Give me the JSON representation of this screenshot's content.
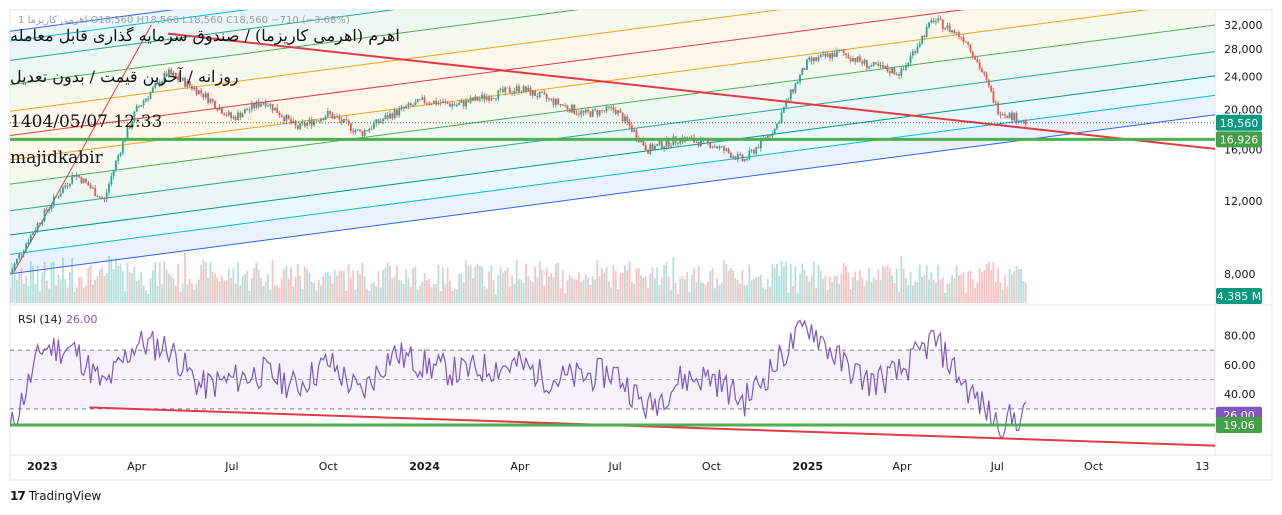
{
  "overlay_text": {
    "title": "اهرم (اهرمی کاریزما) / صندوق سرمایه گذاری قابل معامله",
    "subtitle": "روزانه / آخرین قیمت / بدون تعدیل",
    "datetime": "1404/05/07 12:33",
    "author": "majidkabir"
  },
  "ohlc_header": {
    "symbol": "اهرمی کاریزما",
    "timeframe": "1",
    "open": "O18,560",
    "high": "H18,560",
    "low": "L18,560",
    "close": "C18,560",
    "change": "−710 (−3.68%)"
  },
  "brand": {
    "logo": "17",
    "name": "TradingView"
  },
  "colors": {
    "up": "#26a69a",
    "down": "#ef5350",
    "support_line": "#4caf50",
    "trend_line": "#e53947",
    "rsi_line": "#7e57c2",
    "channel_outer": "#2962ff",
    "price_label_bg": "#089981",
    "support_label_bg": "#43a047"
  },
  "chart_data": [
    {
      "type": "candlestick",
      "title": "",
      "y_ticks": [
        "32,000",
        "28,000",
        "24,000",
        "20,000",
        "16,000",
        "12,000",
        "8,000"
      ],
      "x_ticks": [
        "2023",
        "Apr",
        "Jul",
        "Oct",
        "2024",
        "Apr",
        "Jul",
        "Oct",
        "2025",
        "Apr",
        "Jul",
        "Oct",
        "13"
      ],
      "price_label": "18,560",
      "support_label": "16,926",
      "volume_label": "4.385 M",
      "support_level": 16926,
      "last_price": 18560,
      "ylim": [
        6800,
        34800
      ],
      "grid": false,
      "price_path": [
        {
          "date": "2022-12",
          "close": 8000
        },
        {
          "date": "2023-01",
          "close": 11000
        },
        {
          "date": "2023-02",
          "close": 14000
        },
        {
          "date": "2023-03",
          "close": 12000
        },
        {
          "date": "2023-04",
          "close": 20000
        },
        {
          "date": "2023-05",
          "close": 24500
        },
        {
          "date": "2023-06",
          "close": 22000
        },
        {
          "date": "2023-07",
          "close": 19000
        },
        {
          "date": "2023-08",
          "close": 21000
        },
        {
          "date": "2023-09",
          "close": 18000
        },
        {
          "date": "2023-10",
          "close": 19500
        },
        {
          "date": "2023-11",
          "close": 17500
        },
        {
          "date": "2023-12",
          "close": 19500
        },
        {
          "date": "2024-01",
          "close": 21000
        },
        {
          "date": "2024-02",
          "close": 20500
        },
        {
          "date": "2024-03",
          "close": 21500
        },
        {
          "date": "2024-04",
          "close": 22500
        },
        {
          "date": "2024-05",
          "close": 21000
        },
        {
          "date": "2024-06",
          "close": 19500
        },
        {
          "date": "2024-07",
          "close": 20000
        },
        {
          "date": "2024-08",
          "close": 16000
        },
        {
          "date": "2024-09",
          "close": 17000
        },
        {
          "date": "2024-10",
          "close": 16500
        },
        {
          "date": "2024-11",
          "close": 15000
        },
        {
          "date": "2024-12",
          "close": 18000
        },
        {
          "date": "2025-01",
          "close": 26000
        },
        {
          "date": "2025-02",
          "close": 27500
        },
        {
          "date": "2025-03",
          "close": 25500
        },
        {
          "date": "2025-04",
          "close": 24500
        },
        {
          "date": "2025-05",
          "close": 33000
        },
        {
          "date": "2025-06",
          "close": 29500
        },
        {
          "date": "2025-07",
          "close": 20000
        },
        {
          "date": "2025-07-29",
          "close": 18560
        }
      ]
    },
    {
      "type": "line",
      "title": "RSI (14)",
      "current_value": "26.00",
      "label_value": "19.06",
      "y_ticks": [
        "80.00",
        "60.00",
        "40.00"
      ],
      "levels": [
        70,
        50,
        30
      ],
      "ylim": [
        0,
        100
      ],
      "series": [
        {
          "name": "RSI (14)",
          "x": [
            "2022-12",
            "2023-01",
            "2023-02",
            "2023-03",
            "2023-04",
            "2023-05",
            "2023-06",
            "2023-07",
            "2023-08",
            "2023-09",
            "2023-10",
            "2023-11",
            "2023-12",
            "2024-01",
            "2024-02",
            "2024-03",
            "2024-04",
            "2024-05",
            "2024-06",
            "2024-07",
            "2024-08",
            "2024-09",
            "2024-10",
            "2024-11",
            "2024-12",
            "2025-01",
            "2025-02",
            "2025-03",
            "2025-04",
            "2025-05",
            "2025-06",
            "2025-07",
            "2025-07-29"
          ],
          "values": [
            15,
            72,
            70,
            45,
            75,
            72,
            45,
            50,
            55,
            45,
            62,
            40,
            68,
            60,
            55,
            58,
            60,
            50,
            52,
            55,
            30,
            50,
            52,
            35,
            60,
            88,
            62,
            48,
            55,
            78,
            45,
            20,
            26
          ]
        }
      ]
    }
  ]
}
